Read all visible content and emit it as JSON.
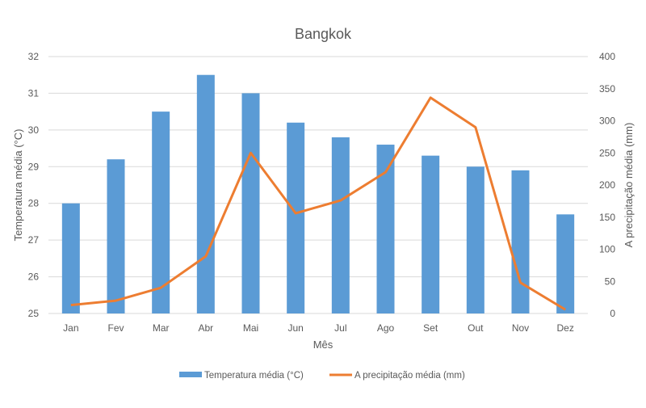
{
  "chart_data": {
    "type": "bar+line",
    "title": "Bangkok",
    "xlabel": "Mês",
    "ylabel": "Temperatura média (°C)",
    "y2label": "A precipitação média (mm)",
    "categories": [
      "Jan",
      "Fev",
      "Mar",
      "Abr",
      "Mai",
      "Jun",
      "Jul",
      "Ago",
      "Set",
      "Out",
      "Nov",
      "Dez"
    ],
    "ylim": [
      25,
      32
    ],
    "yticks": [
      "25",
      "26",
      "27",
      "28",
      "29",
      "30",
      "31",
      "32"
    ],
    "y2lim": [
      0,
      400
    ],
    "y2ticks": [
      "0",
      "50",
      "100",
      "150",
      "200",
      "250",
      "300",
      "350",
      "400"
    ],
    "grid": true,
    "legend_position": "bottom",
    "series": [
      {
        "name": "Temperatura média (°C)",
        "type": "bar",
        "axis": "left",
        "color": "#5B9BD5",
        "values": [
          28.0,
          29.2,
          30.5,
          31.5,
          31.0,
          30.2,
          29.8,
          29.6,
          29.3,
          29.0,
          28.9,
          27.7
        ]
      },
      {
        "name": "A precipitação média (mm)",
        "type": "line",
        "axis": "right",
        "color": "#ED7D31",
        "values": [
          13,
          20,
          40,
          89,
          250,
          156,
          176,
          220,
          336,
          290,
          48,
          6
        ]
      }
    ]
  }
}
